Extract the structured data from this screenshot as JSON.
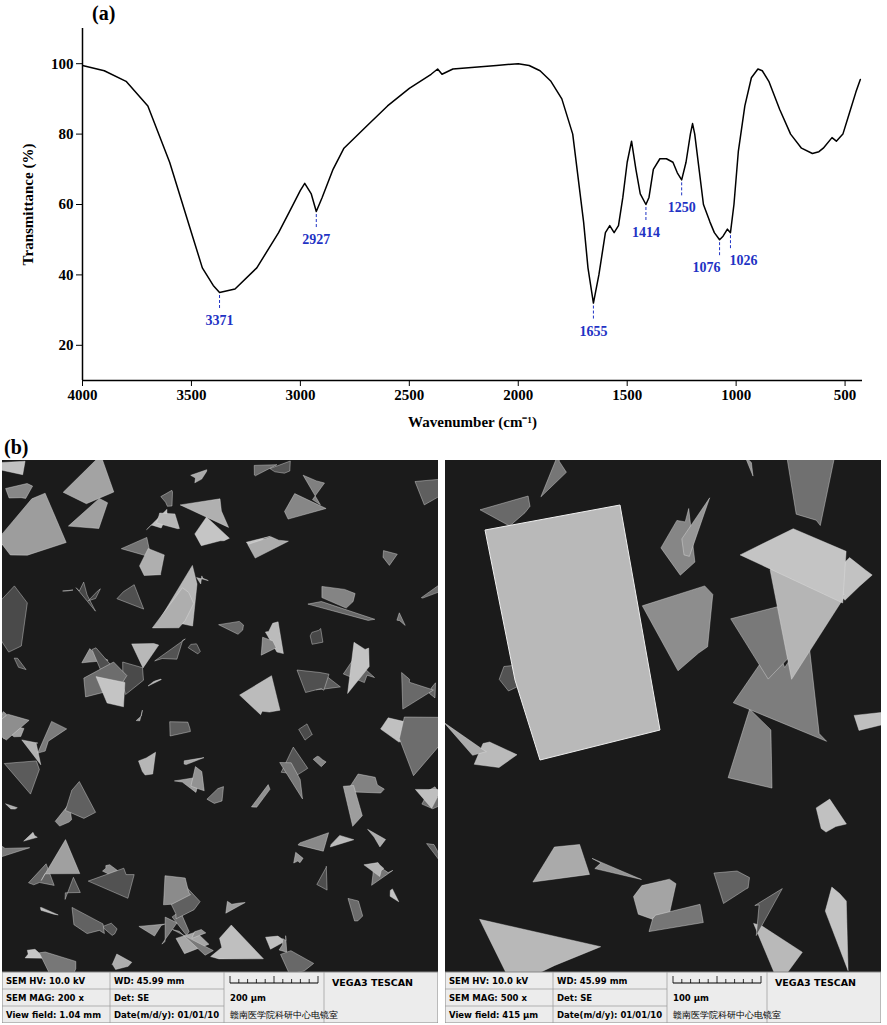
{
  "chart_data": {
    "type": "line",
    "title": "(a)",
    "x_label": "Wavenumber (cm⁻¹)",
    "y_label": "Transmittance (%)",
    "color": "#000000",
    "x": [
      4000,
      3900,
      3800,
      3700,
      3600,
      3500,
      3450,
      3400,
      3371,
      3300,
      3200,
      3100,
      3050,
      3000,
      2980,
      2950,
      2927,
      2900,
      2850,
      2800,
      2700,
      2600,
      2500,
      2400,
      2370,
      2350,
      2300,
      2200,
      2100,
      2000,
      1950,
      1900,
      1850,
      1800,
      1750,
      1700,
      1680,
      1655,
      1630,
      1600,
      1580,
      1560,
      1540,
      1520,
      1500,
      1480,
      1460,
      1440,
      1414,
      1400,
      1380,
      1350,
      1320,
      1290,
      1270,
      1250,
      1230,
      1210,
      1200,
      1190,
      1170,
      1150,
      1120,
      1100,
      1076,
      1060,
      1040,
      1026,
      1010,
      990,
      960,
      930,
      900,
      880,
      850,
      800,
      750,
      700,
      650,
      620,
      600,
      560,
      540,
      510,
      480,
      450,
      430
    ],
    "values": [
      99.5,
      98,
      95,
      88,
      72,
      52,
      42,
      37,
      35,
      36,
      42,
      52,
      58,
      64,
      66,
      63,
      58,
      62,
      70,
      76,
      82,
      88,
      93,
      97,
      98.5,
      97,
      98.5,
      99,
      99.5,
      100,
      99.5,
      98,
      95,
      90,
      80,
      55,
      42,
      32,
      40,
      52,
      54,
      52,
      54,
      62,
      72,
      78,
      70,
      63,
      60,
      62,
      70,
      73,
      73,
      72,
      69,
      67,
      72,
      80,
      83,
      80,
      70,
      60,
      55,
      52,
      50,
      51,
      53,
      52,
      60,
      75,
      88,
      96,
      98.5,
      98,
      95,
      87,
      80,
      76,
      74.5,
      75,
      76,
      79,
      78,
      80,
      86,
      92,
      95.5
    ],
    "peaks": [
      {
        "x": 3371,
        "y": 35
      },
      {
        "x": 2927,
        "y": 58
      },
      {
        "x": 1655,
        "y": 32
      },
      {
        "x": 1414,
        "y": 60
      },
      {
        "x": 1250,
        "y": 67
      },
      {
        "x": 1076,
        "y": 50
      },
      {
        "x": 1026,
        "y": 52
      }
    ],
    "xlim": [
      4000,
      420
    ],
    "xticks": [
      4000,
      3500,
      3000,
      2500,
      2000,
      1500,
      1000,
      500
    ],
    "ylim": [
      10,
      110
    ],
    "yticks": [
      20,
      40,
      60,
      80,
      100
    ],
    "grid": false
  },
  "figure_b": {
    "label": "(b)",
    "micrographs": [
      {
        "info": {
          "hv": "SEM HV: 10.0 kV",
          "wd": "WD: 45.99 mm",
          "instrument": "VEGA3 TESCAN",
          "mag": "SEM MAG: 200 x",
          "det": "Det: SE",
          "scale_bar": "200 μm",
          "view_field": "View field: 1.04 mm",
          "date": "Date(m/d/y): 01/01/10",
          "lab": "赣南医学院科研中心电镜室"
        }
      },
      {
        "info": {
          "hv": "SEM HV: 10.0 kV",
          "wd": "WD: 45.99 mm",
          "instrument": "VEGA3 TESCAN",
          "mag": "SEM MAG: 500 x",
          "det": "Det: SE",
          "scale_bar": "100 μm",
          "view_field": "View field: 415 μm",
          "date": "Date(m/d/y): 01/01/10",
          "lab": "赣南医学院科研中心电镜室"
        }
      }
    ]
  }
}
